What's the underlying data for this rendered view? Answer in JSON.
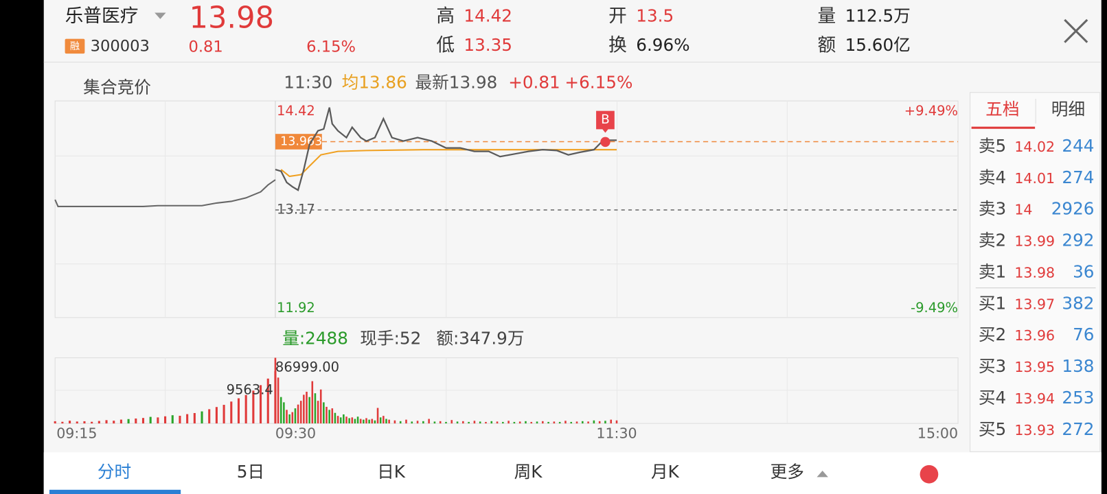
{
  "header": {
    "name": "乐普医疗",
    "price": 13.98,
    "badge": "融",
    "code": "300003",
    "change": 0.81,
    "change_pct": "6.15%",
    "stats": [
      {
        "label": "高",
        "value": 14.42
      },
      {
        "label": "低",
        "value": 13.35
      },
      {
        "label": "开",
        "value": 13.5
      },
      {
        "label": "换",
        "value": "6.96%"
      },
      {
        "label": "量",
        "value": "112.5万"
      },
      {
        "label": "额",
        "value": "15.60亿"
      }
    ]
  },
  "info": {
    "phase": "集合竞价",
    "time": "11:30",
    "average": "均13.86",
    "latest": "最新13.98",
    "change": "+0.81",
    "change_pct": "+6.15%"
  },
  "volume_info": {
    "volume": "量:2488",
    "hand": "现手:52",
    "amount": "额:347.9万"
  },
  "chart_data": {
    "type": "line",
    "ylim": [
      11.92,
      14.42
    ],
    "yticks": [
      14.42,
      13.17,
      11.92
    ],
    "y2lim": [
      -9.49,
      9.49
    ],
    "y2ticks": [
      {
        "value": 9.49,
        "label": "+9.49%"
      },
      {
        "value": -9.49,
        "label": "-9.49%"
      }
    ],
    "auction": {
      "xlim": [
        0,
        15
      ],
      "xticks": [
        {
          "value": 0,
          "label": "09:15"
        }
      ],
      "color": "#666666",
      "x": [
        0,
        0.2,
        1,
        2,
        3,
        4,
        5,
        6,
        7,
        8,
        9,
        10,
        11,
        12,
        13,
        14,
        14.5,
        15
      ],
      "values": [
        13.29,
        13.21,
        13.21,
        13.21,
        13.21,
        13.21,
        13.21,
        13.21,
        13.22,
        13.22,
        13.22,
        13.22,
        13.25,
        13.27,
        13.31,
        13.38,
        13.46,
        13.52
      ]
    },
    "intraday": {
      "xlim": [
        0,
        240
      ],
      "xticks": [
        {
          "value": 0,
          "label": "09:30"
        },
        {
          "value": 120,
          "label": "11:30"
        },
        {
          "value": 240,
          "label": "15:00"
        }
      ],
      "color": "#5a5a5a",
      "x": [
        0,
        2,
        4,
        6,
        8,
        10,
        12,
        15,
        17,
        19,
        20,
        22,
        25,
        27,
        30,
        32,
        35,
        38,
        41,
        45,
        50,
        55,
        60,
        65,
        70,
        75,
        79,
        84,
        89,
        94,
        99,
        103,
        107,
        112,
        115,
        117,
        120
      ],
      "values": [
        13.64,
        13.62,
        13.49,
        13.44,
        13.4,
        13.64,
        13.93,
        14.09,
        14.11,
        14.36,
        14.17,
        14.09,
        14.01,
        14.13,
        14.01,
        13.97,
        14.01,
        14.23,
        14.01,
        13.97,
        14.01,
        13.97,
        13.89,
        13.89,
        13.85,
        13.85,
        13.79,
        13.82,
        13.85,
        13.87,
        13.86,
        13.81,
        13.84,
        13.87,
        13.97,
        13.98,
        13.98
      ]
    },
    "average": {
      "color": "#f0a020",
      "x": [
        2,
        5,
        9,
        12,
        16,
        22,
        32,
        52,
        120
      ],
      "values": [
        13.64,
        13.56,
        13.58,
        13.68,
        13.81,
        13.85,
        13.86,
        13.87,
        13.87
      ]
    },
    "last_price": 13.963,
    "last_price_color": "#f0883a",
    "buy_marker": {
      "label": "B",
      "x": 116,
      "value": 13.96,
      "color": "#e8434a"
    },
    "up_color": "#e03a3a",
    "down_color": "#2aa52a",
    "auction_volume": {
      "ylim": [
        0,
        12000
      ],
      "peak": 9563.4,
      "x": [
        0,
        0.5,
        1,
        1.5,
        2,
        2.5,
        3,
        3.5,
        4,
        4.5,
        5,
        5.5,
        6,
        6.5,
        7,
        7.5,
        8,
        8.5,
        9,
        9.5,
        10,
        10.5,
        11,
        11.5,
        12,
        12.5,
        13,
        13.5,
        14,
        14.5,
        15
      ],
      "values": [
        400,
        300,
        500,
        350,
        400,
        300,
        450,
        600,
        500,
        700,
        800,
        900,
        1000,
        1200,
        1100,
        1300,
        1500,
        1400,
        1700,
        1900,
        2200,
        2600,
        3000,
        3400,
        4000,
        4600,
        5200,
        6000,
        7000,
        8200,
        9563.4
      ],
      "rising": [
        true,
        true,
        true,
        true,
        true,
        true,
        true,
        true,
        true,
        true,
        false,
        true,
        true,
        false,
        true,
        true,
        false,
        true,
        true,
        true,
        false,
        true,
        true,
        true,
        true,
        true,
        true,
        true,
        true,
        true,
        true
      ]
    },
    "volume": {
      "ylim": [
        0,
        86999
      ],
      "peak": {
        "value": 86999,
        "label": "86999.00"
      },
      "x": [
        0,
        1,
        2,
        3,
        4,
        5,
        6,
        7,
        8,
        9,
        10,
        11,
        12,
        13,
        14,
        15,
        16,
        17,
        18,
        19,
        20,
        21,
        22,
        23,
        24,
        25,
        26,
        27,
        28,
        29,
        30,
        31,
        32,
        33,
        34,
        35,
        36,
        37,
        38,
        39,
        40,
        42,
        44,
        46,
        48,
        50,
        52,
        54,
        56,
        58,
        60,
        62,
        64,
        66,
        68,
        70,
        72,
        74,
        76,
        78,
        80,
        82,
        84,
        86,
        88,
        90,
        92,
        94,
        96,
        98,
        100,
        102,
        104,
        106,
        108,
        110,
        112,
        114,
        116,
        118,
        120
      ],
      "values": [
        86999,
        60775,
        35000,
        28000,
        18000,
        12000,
        15000,
        20000,
        25000,
        30000,
        38000,
        42000,
        35000,
        56000,
        40000,
        30000,
        45000,
        28000,
        22000,
        18000,
        20000,
        14000,
        10000,
        8000,
        12000,
        9000,
        7000,
        8000,
        6000,
        9000,
        6000,
        5000,
        7000,
        5000,
        6000,
        4000,
        20570,
        8000,
        10000,
        6000,
        5000,
        4000,
        3000,
        5000,
        2500,
        3500,
        3000,
        6000,
        2500,
        3000,
        2000,
        4500,
        2500,
        3000,
        2000,
        3500,
        2500,
        2000,
        3000,
        2500,
        2000,
        3500,
        2000,
        2500,
        3000,
        2000,
        2500,
        3000,
        2000,
        2500,
        2000,
        3500,
        2000,
        2500,
        3000,
        2500,
        4000,
        3000,
        3500,
        5000,
        4000
      ],
      "rising": [
        true,
        true,
        false,
        false,
        true,
        false,
        true,
        false,
        true,
        true,
        true,
        true,
        false,
        true,
        false,
        true,
        true,
        false,
        true,
        false,
        true,
        false,
        true,
        false,
        false,
        true,
        false,
        true,
        false,
        false,
        true,
        false,
        true,
        false,
        true,
        false,
        true,
        false,
        true,
        false,
        true,
        true,
        false,
        true,
        false,
        true,
        false,
        true,
        false,
        true,
        false,
        true,
        false,
        true,
        false,
        true,
        false,
        true,
        false,
        true,
        false,
        true,
        false,
        true,
        false,
        true,
        false,
        true,
        false,
        true,
        false,
        true,
        false,
        true,
        false,
        true,
        false,
        true,
        false,
        true,
        true
      ]
    }
  },
  "order_book": {
    "tabs": [
      "五档",
      "明细"
    ],
    "rows": [
      {
        "label": "卖5",
        "price": 14.02,
        "volume": 244
      },
      {
        "label": "卖4",
        "price": 14.01,
        "volume": 274
      },
      {
        "label": "卖3",
        "price": 14.0,
        "volume": 2926
      },
      {
        "label": "卖2",
        "price": 13.99,
        "volume": 292
      },
      {
        "label": "卖1",
        "price": 13.98,
        "volume": 36
      },
      {
        "label": "买1",
        "price": 13.97,
        "volume": 382
      },
      {
        "label": "买2",
        "price": 13.96,
        "volume": 76
      },
      {
        "label": "买3",
        "price": 13.95,
        "volume": 138
      },
      {
        "label": "买4",
        "price": 13.94,
        "volume": 253
      },
      {
        "label": "买5",
        "price": 13.93,
        "volume": 272
      }
    ]
  },
  "tabs": [
    "分时",
    "5日",
    "日K",
    "周K",
    "月K",
    "更多"
  ]
}
